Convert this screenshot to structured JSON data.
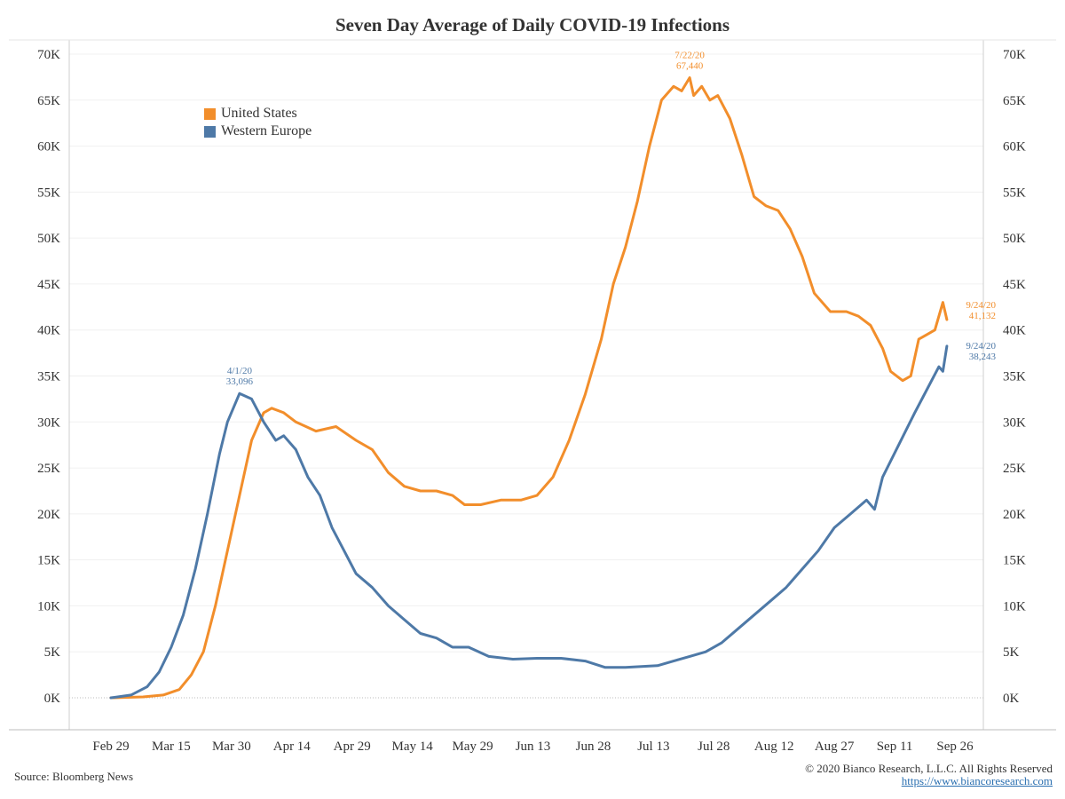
{
  "title": "Seven Day Average of Daily COVID-19 Infections",
  "legend": [
    {
      "label": "United States",
      "color": "#f28e2b"
    },
    {
      "label": "Western Europe",
      "color": "#4e79a7"
    }
  ],
  "footer": {
    "source": "Source: Bloomberg News",
    "copyright": "© 2020 Bianco Research, L.L.C. All Rights Reserved",
    "url": "https://www.biancoresearch.com"
  },
  "chart_data": {
    "type": "line",
    "title": "Seven Day Average of Daily COVID-19 Infections",
    "xlabel": "",
    "ylabel": "",
    "x_ticks": [
      "Feb 29",
      "Mar 15",
      "Mar 30",
      "Apr 14",
      "Apr 29",
      "May 14",
      "May 29",
      "Jun 13",
      "Jun 28",
      "Jul 13",
      "Jul 28",
      "Aug 12",
      "Aug 27",
      "Sep 11",
      "Sep 26"
    ],
    "y_ticks": [
      "0K",
      "5K",
      "10K",
      "15K",
      "20K",
      "25K",
      "30K",
      "35K",
      "40K",
      "45K",
      "50K",
      "55K",
      "60K",
      "65K",
      "70K"
    ],
    "xlim": [
      "2020-02-29",
      "2020-09-26"
    ],
    "ylim": [
      0,
      70000
    ],
    "grid": true,
    "legend_position": "top-left",
    "series": [
      {
        "name": "United States",
        "color": "#f28e2b",
        "points": [
          [
            "2020-02-29",
            0
          ],
          [
            "2020-03-08",
            100
          ],
          [
            "2020-03-13",
            300
          ],
          [
            "2020-03-17",
            900
          ],
          [
            "2020-03-20",
            2500
          ],
          [
            "2020-03-23",
            5000
          ],
          [
            "2020-03-26",
            10000
          ],
          [
            "2020-03-29",
            16000
          ],
          [
            "2020-04-01",
            22000
          ],
          [
            "2020-04-04",
            28000
          ],
          [
            "2020-04-07",
            31000
          ],
          [
            "2020-04-09",
            31500
          ],
          [
            "2020-04-12",
            31000
          ],
          [
            "2020-04-15",
            30000
          ],
          [
            "2020-04-20",
            29000
          ],
          [
            "2020-04-25",
            29500
          ],
          [
            "2020-04-30",
            28000
          ],
          [
            "2020-05-04",
            27000
          ],
          [
            "2020-05-08",
            24500
          ],
          [
            "2020-05-12",
            23000
          ],
          [
            "2020-05-16",
            22500
          ],
          [
            "2020-05-20",
            22500
          ],
          [
            "2020-05-24",
            22000
          ],
          [
            "2020-05-27",
            21000
          ],
          [
            "2020-05-31",
            21000
          ],
          [
            "2020-06-05",
            21500
          ],
          [
            "2020-06-10",
            21500
          ],
          [
            "2020-06-14",
            22000
          ],
          [
            "2020-06-18",
            24000
          ],
          [
            "2020-06-22",
            28000
          ],
          [
            "2020-06-26",
            33000
          ],
          [
            "2020-06-30",
            39000
          ],
          [
            "2020-07-03",
            45000
          ],
          [
            "2020-07-06",
            49000
          ],
          [
            "2020-07-09",
            54000
          ],
          [
            "2020-07-12",
            60000
          ],
          [
            "2020-07-15",
            65000
          ],
          [
            "2020-07-18",
            66500
          ],
          [
            "2020-07-20",
            66000
          ],
          [
            "2020-07-22",
            67440
          ],
          [
            "2020-07-23",
            65500
          ],
          [
            "2020-07-25",
            66500
          ],
          [
            "2020-07-27",
            65000
          ],
          [
            "2020-07-29",
            65500
          ],
          [
            "2020-08-01",
            63000
          ],
          [
            "2020-08-04",
            59000
          ],
          [
            "2020-08-07",
            54500
          ],
          [
            "2020-08-10",
            53500
          ],
          [
            "2020-08-13",
            53000
          ],
          [
            "2020-08-16",
            51000
          ],
          [
            "2020-08-19",
            48000
          ],
          [
            "2020-08-22",
            44000
          ],
          [
            "2020-08-26",
            42000
          ],
          [
            "2020-08-30",
            42000
          ],
          [
            "2020-09-02",
            41500
          ],
          [
            "2020-09-05",
            40500
          ],
          [
            "2020-09-08",
            38000
          ],
          [
            "2020-09-10",
            35500
          ],
          [
            "2020-09-13",
            34500
          ],
          [
            "2020-09-15",
            35000
          ],
          [
            "2020-09-17",
            39000
          ],
          [
            "2020-09-19",
            39500
          ],
          [
            "2020-09-21",
            40000
          ],
          [
            "2020-09-23",
            43000
          ],
          [
            "2020-09-24",
            41132
          ]
        ]
      },
      {
        "name": "Western Europe",
        "color": "#4e79a7",
        "points": [
          [
            "2020-02-29",
            0
          ],
          [
            "2020-03-05",
            300
          ],
          [
            "2020-03-09",
            1200
          ],
          [
            "2020-03-12",
            2800
          ],
          [
            "2020-03-15",
            5500
          ],
          [
            "2020-03-18",
            9000
          ],
          [
            "2020-03-21",
            14000
          ],
          [
            "2020-03-24",
            20000
          ],
          [
            "2020-03-27",
            26500
          ],
          [
            "2020-03-29",
            30000
          ],
          [
            "2020-04-01",
            33096
          ],
          [
            "2020-04-04",
            32500
          ],
          [
            "2020-04-07",
            30000
          ],
          [
            "2020-04-10",
            28000
          ],
          [
            "2020-04-12",
            28500
          ],
          [
            "2020-04-15",
            27000
          ],
          [
            "2020-04-18",
            24000
          ],
          [
            "2020-04-21",
            22000
          ],
          [
            "2020-04-24",
            18500
          ],
          [
            "2020-04-27",
            16000
          ],
          [
            "2020-04-30",
            13500
          ],
          [
            "2020-05-04",
            12000
          ],
          [
            "2020-05-08",
            10000
          ],
          [
            "2020-05-12",
            8500
          ],
          [
            "2020-05-16",
            7000
          ],
          [
            "2020-05-20",
            6500
          ],
          [
            "2020-05-24",
            5500
          ],
          [
            "2020-05-28",
            5500
          ],
          [
            "2020-06-02",
            4500
          ],
          [
            "2020-06-08",
            4200
          ],
          [
            "2020-06-14",
            4300
          ],
          [
            "2020-06-20",
            4300
          ],
          [
            "2020-06-26",
            4000
          ],
          [
            "2020-07-01",
            3300
          ],
          [
            "2020-07-06",
            3300
          ],
          [
            "2020-07-10",
            3400
          ],
          [
            "2020-07-14",
            3500
          ],
          [
            "2020-07-18",
            4000
          ],
          [
            "2020-07-22",
            4500
          ],
          [
            "2020-07-26",
            5000
          ],
          [
            "2020-07-30",
            6000
          ],
          [
            "2020-08-03",
            7500
          ],
          [
            "2020-08-07",
            9000
          ],
          [
            "2020-08-11",
            10500
          ],
          [
            "2020-08-15",
            12000
          ],
          [
            "2020-08-19",
            14000
          ],
          [
            "2020-08-23",
            16000
          ],
          [
            "2020-08-27",
            18500
          ],
          [
            "2020-08-31",
            20000
          ],
          [
            "2020-09-04",
            21500
          ],
          [
            "2020-09-06",
            20500
          ],
          [
            "2020-09-08",
            24000
          ],
          [
            "2020-09-12",
            27500
          ],
          [
            "2020-09-16",
            31000
          ],
          [
            "2020-09-19",
            33500
          ],
          [
            "2020-09-22",
            36000
          ],
          [
            "2020-09-23",
            35500
          ],
          [
            "2020-09-24",
            38243
          ]
        ]
      }
    ],
    "annotations": [
      {
        "series": "United States",
        "date_text": "7/22/20",
        "value_text": "67,440",
        "x": "2020-07-22",
        "y": 67440
      },
      {
        "series": "Western Europe",
        "date_text": "4/1/20",
        "value_text": "33,096",
        "x": "2020-04-01",
        "y": 33096
      },
      {
        "series": "United States",
        "date_text": "9/24/20",
        "value_text": "41,132",
        "x": "2020-09-24",
        "y": 41132
      },
      {
        "series": "Western Europe",
        "date_text": "9/24/20",
        "value_text": "38,243",
        "x": "2020-09-24",
        "y": 38243
      }
    ]
  }
}
